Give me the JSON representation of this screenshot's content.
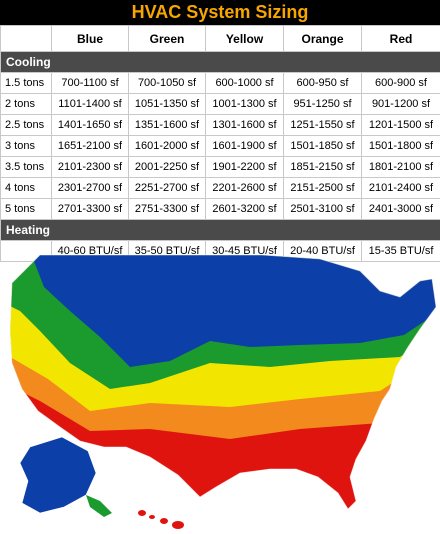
{
  "title": "HVAC System Sizing",
  "columns": [
    "",
    "Blue",
    "Green",
    "Yellow",
    "Orange",
    "Red"
  ],
  "cooling": {
    "label": "Cooling",
    "rows": [
      {
        "size": "1.5 tons",
        "values": [
          "700-1100 sf",
          "700-1050 sf",
          "600-1000 sf",
          "600-950 sf",
          "600-900 sf"
        ]
      },
      {
        "size": "2 tons",
        "values": [
          "1101-1400 sf",
          "1051-1350 sf",
          "1001-1300 sf",
          "951-1250 sf",
          "901-1200 sf"
        ]
      },
      {
        "size": "2.5 tons",
        "values": [
          "1401-1650 sf",
          "1351-1600 sf",
          "1301-1600 sf",
          "1251-1550 sf",
          "1201-1500 sf"
        ]
      },
      {
        "size": "3 tons",
        "values": [
          "1651-2100 sf",
          "1601-2000 sf",
          "1601-1900 sf",
          "1501-1850 sf",
          "1501-1800 sf"
        ]
      },
      {
        "size": "3.5 tons",
        "values": [
          "2101-2300 sf",
          "2001-2250 sf",
          "1901-2200 sf",
          "1851-2150 sf",
          "1801-2100 sf"
        ]
      },
      {
        "size": "4 tons",
        "values": [
          "2301-2700 sf",
          "2251-2700 sf",
          "2201-2600 sf",
          "2151-2500 sf",
          "2101-2400 sf"
        ]
      },
      {
        "size": "5 tons",
        "values": [
          "2701-3300 sf",
          "2751-3300 sf",
          "2601-3200 sf",
          "2501-3100 sf",
          "2401-3000 sf"
        ]
      }
    ]
  },
  "heating": {
    "label": "Heating",
    "values": [
      "40-60 BTU/sf",
      "35-50 BTU/sf",
      "30-45 BTU/sf",
      "20-40 BTU/sf",
      "15-35 BTU/sf"
    ]
  },
  "zone_colors": {
    "blue": "#0d3fa8",
    "green": "#1b9a2e",
    "yellow": "#f2e600",
    "orange": "#f28a1e",
    "red": "#e0140f"
  }
}
